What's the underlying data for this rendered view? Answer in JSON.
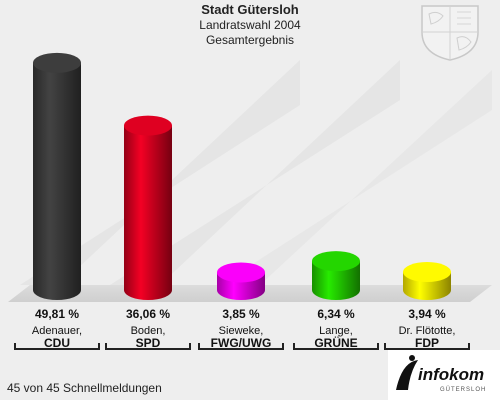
{
  "header": {
    "title": "Stadt Gütersloh",
    "subtitle": "Landratswahl 2004",
    "subtitle2": "Gesamtergebnis"
  },
  "footer": {
    "status": "45 von 45 Schnellmeldungen"
  },
  "logo": {
    "text": "infokom",
    "subtext": "GÜTERSLOH"
  },
  "chart_data": {
    "type": "bar",
    "title": "Stadt Gütersloh",
    "subtitle": "Landratswahl 2004 Gesamtergebnis",
    "unit": "%",
    "ylim": [
      0,
      50
    ],
    "grid": false,
    "legend": "none",
    "categories": [
      "CDU",
      "SPD",
      "FWG/UWG",
      "GRÜNE",
      "FDP"
    ],
    "candidates": [
      "Adenauer,",
      "Boden,",
      "Sieweke,",
      "Lange,",
      "Dr. Flötotte,"
    ],
    "values": [
      49.81,
      36.06,
      3.85,
      6.34,
      3.94
    ],
    "value_labels": [
      "49,81 %",
      "36,06 %",
      "3,85 %",
      "6,34 %",
      "3,94 %"
    ],
    "colors": [
      "#3a3a3a",
      "#d4001f",
      "#ee00ee",
      "#22cc00",
      "#ffee00"
    ]
  }
}
